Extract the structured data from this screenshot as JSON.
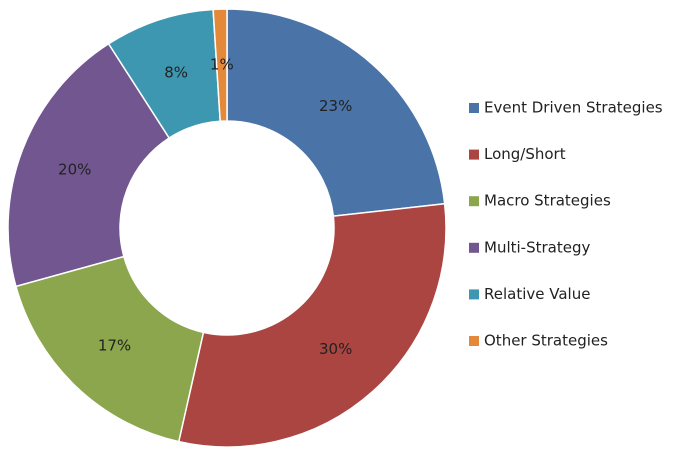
{
  "chart_data": {
    "type": "donut",
    "categories": [
      "Event Driven Strategies",
      "Long/Short",
      "Macro Strategies",
      "Multi-Strategy",
      "Relative Value",
      "Other Strategies"
    ],
    "values": [
      23,
      30,
      17,
      20,
      8,
      1
    ],
    "value_labels": [
      "23%",
      "30%",
      "17%",
      "20%",
      "8%",
      "1%"
    ],
    "colors": [
      "#4a74a8",
      "#aa4541",
      "#8ba64c",
      "#71568f",
      "#3e97b1",
      "#e4893a"
    ],
    "legend": "right"
  }
}
